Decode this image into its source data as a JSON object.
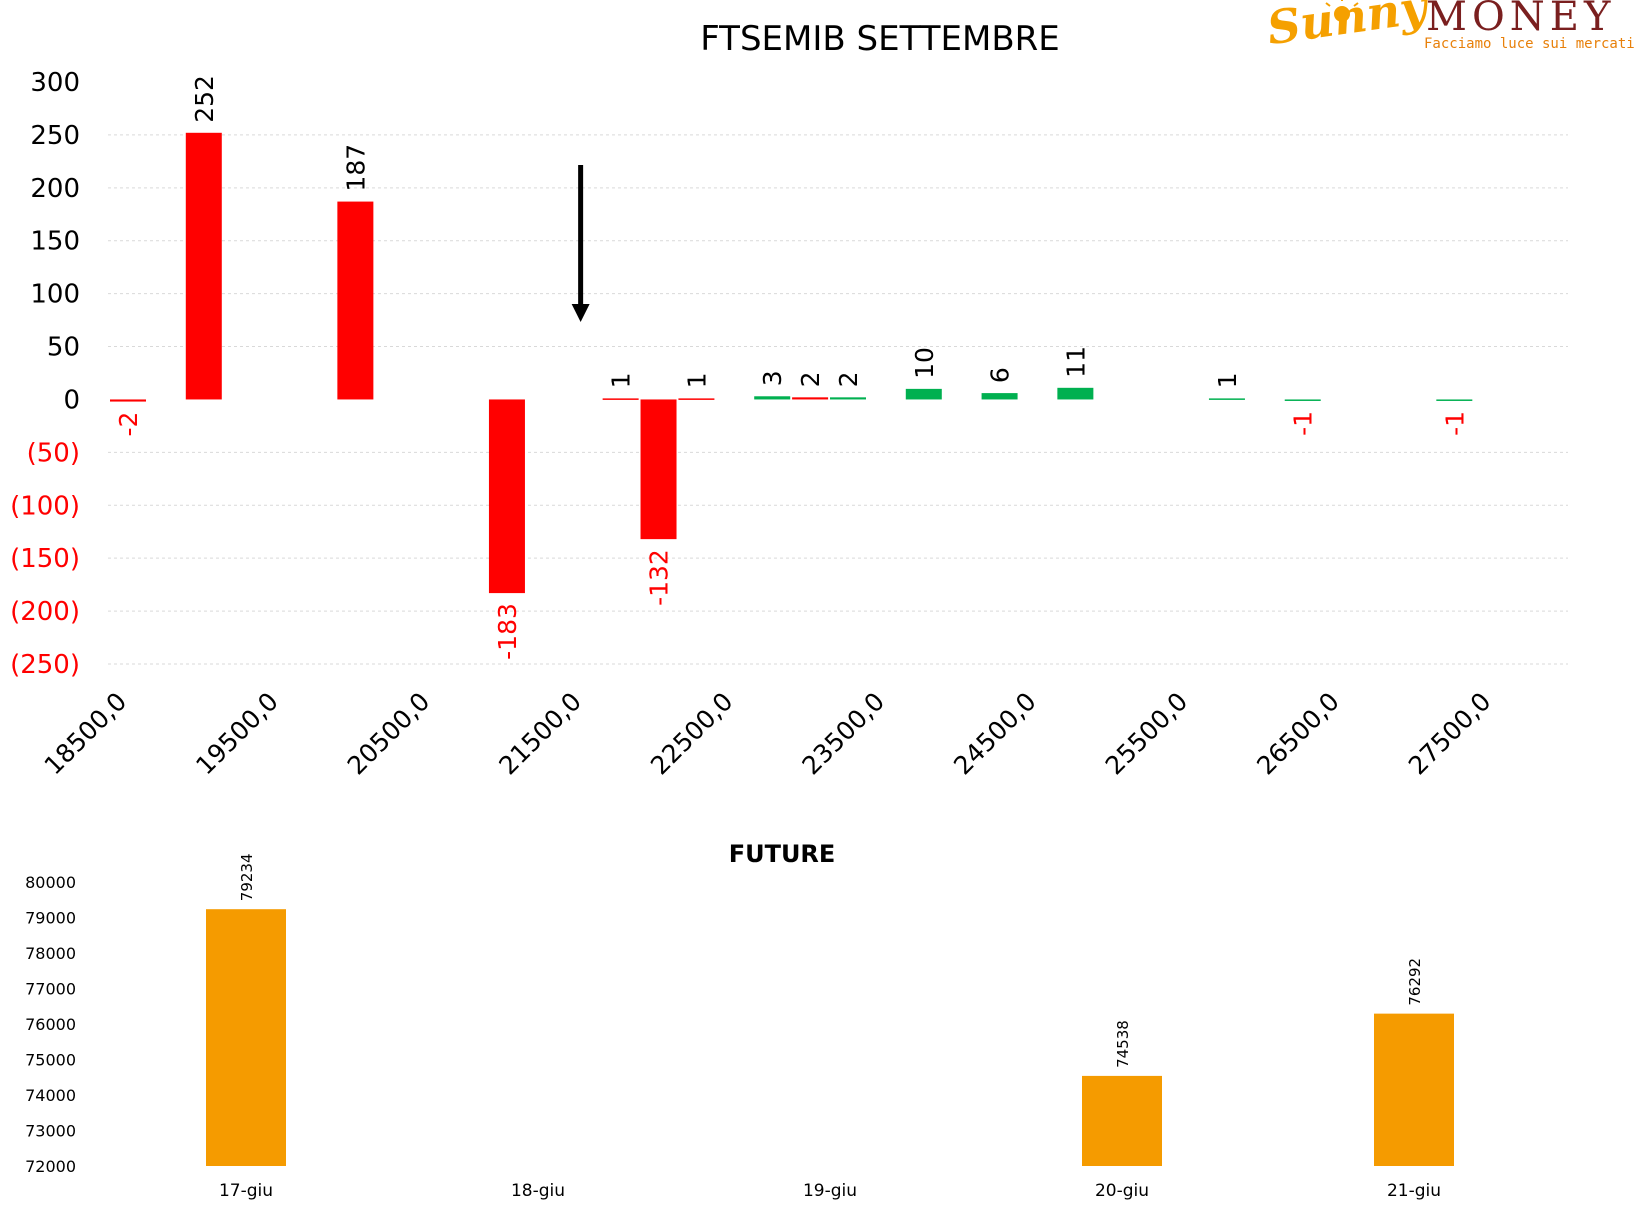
{
  "logo": {
    "script_text": "Sunny",
    "word_text": "MONEY",
    "tagline": "Facciamo luce sui mercati",
    "colors": {
      "script": "#F5A000",
      "word": "#7A1F1F",
      "tagline": "#E8800A"
    }
  },
  "colors": {
    "negative": "#FF0000",
    "positive": "#00B050",
    "future": "#F59B00",
    "grid": "#D9D9D9",
    "text": "#000000"
  },
  "chart_data": [
    {
      "type": "bar",
      "title": "FTSEMIB SETTEMBRE",
      "xlabel": "",
      "ylabel": "",
      "ylim": [
        -250,
        300
      ],
      "y_ticks": [
        {
          "value": 300,
          "label": "300"
        },
        {
          "value": 250,
          "label": "250"
        },
        {
          "value": 200,
          "label": "200"
        },
        {
          "value": 150,
          "label": "150"
        },
        {
          "value": 100,
          "label": "100"
        },
        {
          "value": 50,
          "label": "50"
        },
        {
          "value": 0,
          "label": "0"
        },
        {
          "value": -50,
          "label": "(50)"
        },
        {
          "value": -100,
          "label": "(100)"
        },
        {
          "value": -150,
          "label": "(150)"
        },
        {
          "value": -200,
          "label": "(200)"
        },
        {
          "value": -250,
          "label": "(250)"
        }
      ],
      "x_tick_labels": [
        "18500,0",
        "19500,0",
        "20500,0",
        "21500,0",
        "22500,0",
        "23500,0",
        "24500,0",
        "25500,0",
        "26500,0",
        "27500,0"
      ],
      "x_range": [
        18500,
        28000
      ],
      "grid": true,
      "annotation": "down-arrow",
      "annotation_strike": 21750,
      "bars": [
        {
          "strike": 18500,
          "value": -2,
          "label": "-2",
          "color": "#FF0000"
        },
        {
          "strike": 19000,
          "value": 252,
          "label": "252",
          "color": "#FF0000"
        },
        {
          "strike": 20000,
          "value": 187,
          "label": "187",
          "color": "#FF0000"
        },
        {
          "strike": 21000,
          "value": -183,
          "label": "-183",
          "color": "#FF0000"
        },
        {
          "strike": 21750,
          "value": 1,
          "label": "1",
          "color": "#FF0000"
        },
        {
          "strike": 22000,
          "value": -132,
          "label": "-132",
          "color": "#FF0000"
        },
        {
          "strike": 22250,
          "value": 1,
          "label": "1",
          "color": "#FF0000"
        },
        {
          "strike": 22750,
          "value": 3,
          "label": "3",
          "color": "#00B050"
        },
        {
          "strike": 23000,
          "value": 2,
          "label": "2",
          "color": "#FF0000"
        },
        {
          "strike": 23250,
          "value": 2,
          "label": "2",
          "color": "#00B050"
        },
        {
          "strike": 23750,
          "value": 10,
          "label": "10",
          "color": "#00B050"
        },
        {
          "strike": 24250,
          "value": 6,
          "label": "6",
          "color": "#00B050"
        },
        {
          "strike": 24750,
          "value": 11,
          "label": "11",
          "color": "#00B050"
        },
        {
          "strike": 25750,
          "value": 1,
          "label": "1",
          "color": "#00B050"
        },
        {
          "strike": 26250,
          "value": -1,
          "label": "-1",
          "color": "#00B050"
        },
        {
          "strike": 27250,
          "value": -1,
          "label": "-1",
          "color": "#00B050"
        }
      ]
    },
    {
      "type": "bar",
      "title": "FUTURE",
      "xlabel": "",
      "ylabel": "",
      "ylim": [
        72000,
        80000
      ],
      "y_ticks": [
        80000,
        79000,
        78000,
        77000,
        76000,
        75000,
        74000,
        73000,
        72000
      ],
      "categories": [
        "17-giu",
        "18-giu",
        "19-giu",
        "20-giu",
        "21-giu"
      ],
      "values": [
        79234,
        null,
        null,
        74538,
        76292
      ],
      "value_labels": [
        "79234",
        "",
        "",
        "74538",
        "76292"
      ],
      "grid": false,
      "color": "#F59B00"
    }
  ]
}
